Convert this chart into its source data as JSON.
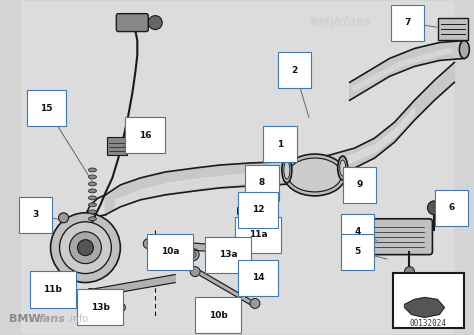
{
  "bg_color": "#d4d4d4",
  "bg_color_center": "#e0e0e0",
  "line_color": "#1a1a1a",
  "part_fill": "#c8c8c8",
  "part_dark": "#888888",
  "part_light": "#e8e8e8",
  "white": "#ffffff",
  "label_border": "#4477aa",
  "watermark_color": "#b0b0b0",
  "part_number": "00132024",
  "watermark_top": "BMWfans",
  "watermark_bottom": "BMWfans.info",
  "pipe_main_color": "#d0d0d0",
  "pipe_outline": "#333333"
}
